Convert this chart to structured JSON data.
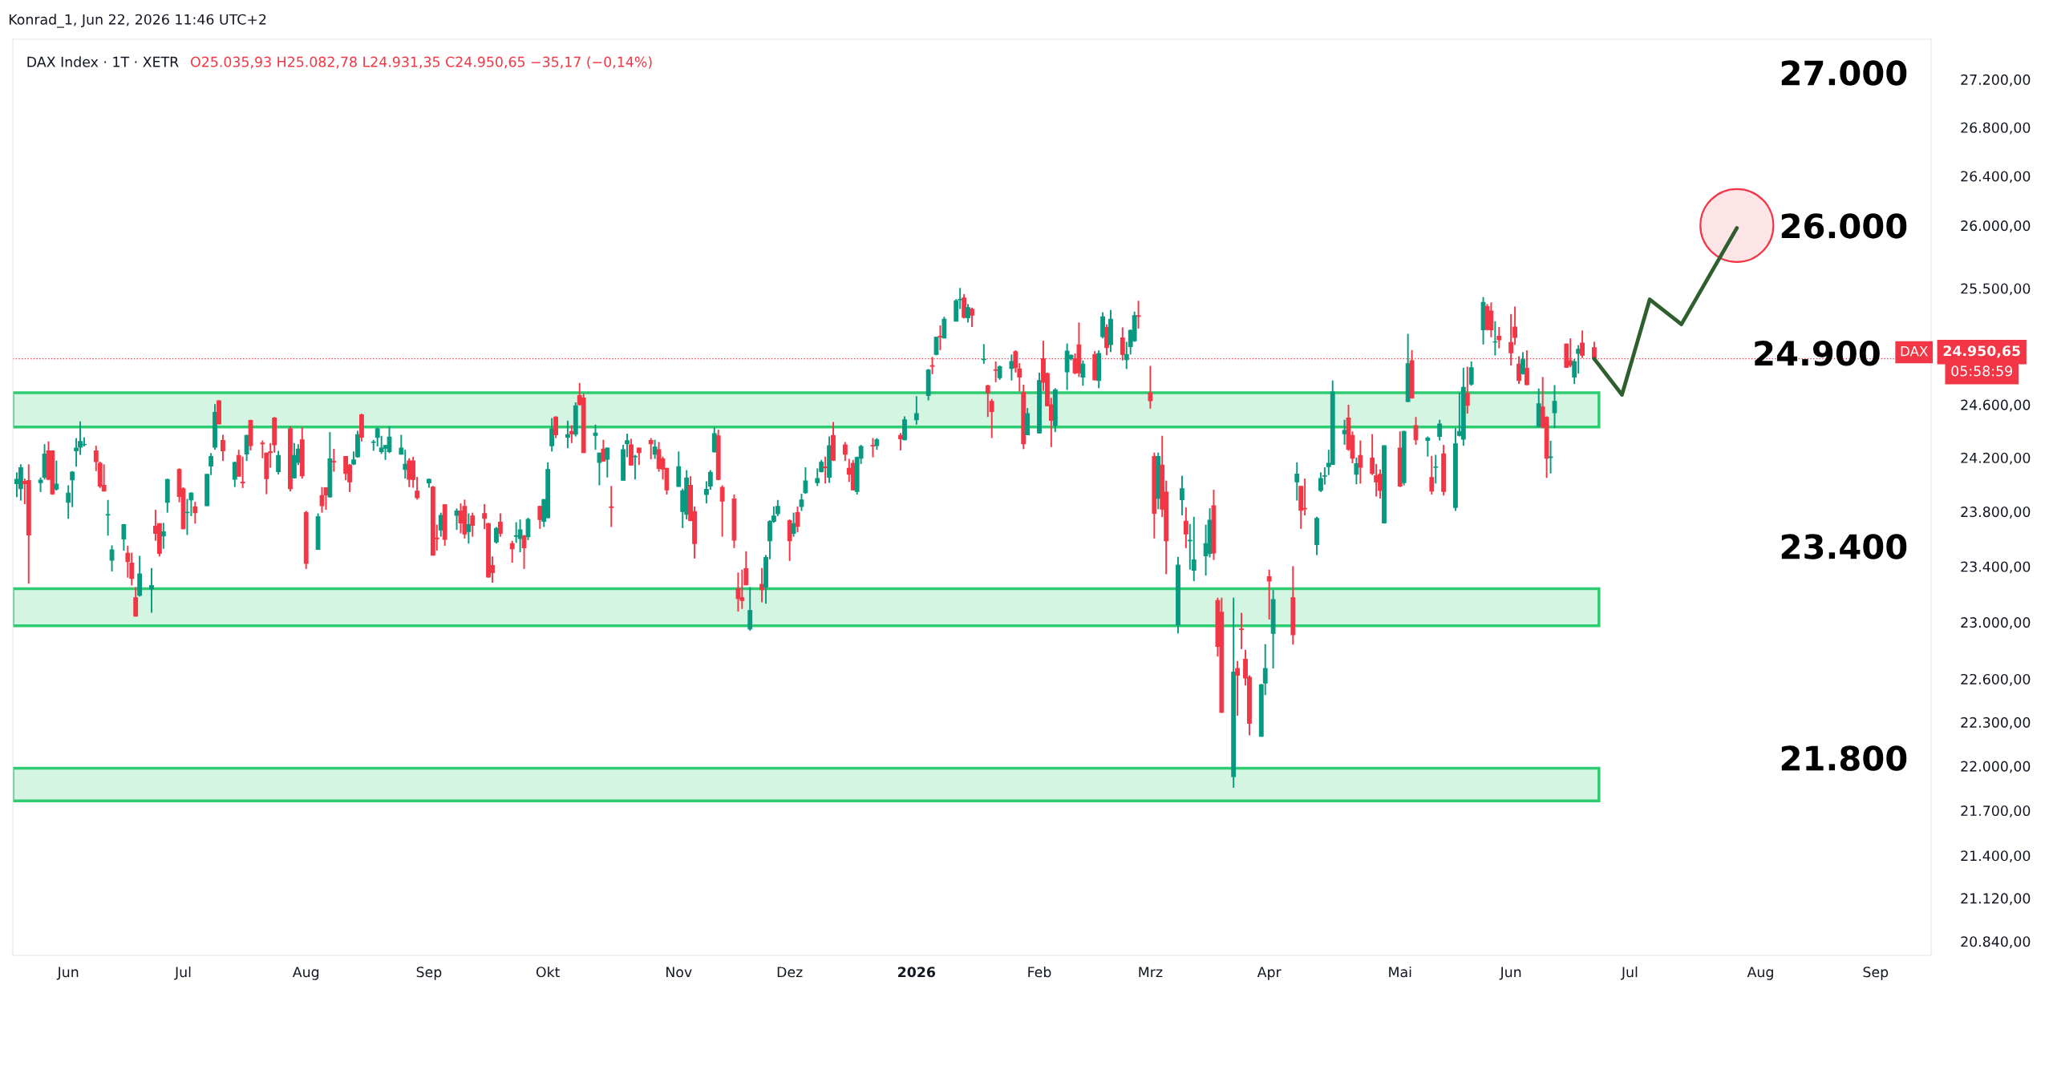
{
  "chart_data": {
    "type": "candlestick",
    "title": "Konrad_1, Jun 22, 2026 11:46 UTC+2",
    "x": [
      "2025-05-20",
      "2025-05-21",
      "2025-05-22",
      "2025-05-23",
      "2025-05-26",
      "2025-05-27",
      "2025-05-28",
      "2025-05-29",
      "2025-05-30",
      "2025-06-02",
      "2025-06-03",
      "2025-06-04",
      "2025-06-05",
      "2025-06-06",
      "2025-06-09",
      "2025-06-10",
      "2025-06-11",
      "2025-06-12",
      "2025-06-13",
      "2025-06-16",
      "2025-06-17",
      "2025-06-18",
      "2025-06-19",
      "2025-06-20",
      "2025-06-23",
      "2025-06-24",
      "2025-06-25",
      "2025-06-26",
      "2025-06-27",
      "2025-06-30",
      "2025-07-01",
      "2025-07-02",
      "2025-07-03",
      "2025-07-04",
      "2025-07-07",
      "2025-07-08",
      "2025-07-09",
      "2025-07-10",
      "2025-07-11",
      "2025-07-14",
      "2025-07-15",
      "2025-07-16",
      "2025-07-17",
      "2025-07-18",
      "2025-07-21",
      "2025-07-22",
      "2025-07-23",
      "2025-07-24",
      "2025-07-25",
      "2025-07-28",
      "2025-07-29",
      "2025-07-30",
      "2025-07-31",
      "2025-08-01",
      "2025-08-04",
      "2025-08-05",
      "2025-08-06",
      "2025-08-07",
      "2025-08-08",
      "2025-08-11",
      "2025-08-12",
      "2025-08-13",
      "2025-08-14",
      "2025-08-15",
      "2025-08-18",
      "2025-08-19",
      "2025-08-20",
      "2025-08-21",
      "2025-08-22",
      "2025-08-25",
      "2025-08-26",
      "2025-08-27",
      "2025-08-28",
      "2025-08-29",
      "2025-09-01",
      "2025-09-02",
      "2025-09-03",
      "2025-09-04",
      "2025-09-05",
      "2025-09-08",
      "2025-09-09",
      "2025-09-10",
      "2025-09-11",
      "2025-09-12",
      "2025-09-15",
      "2025-09-16",
      "2025-09-17",
      "2025-09-18",
      "2025-09-19",
      "2025-09-22",
      "2025-09-23",
      "2025-09-24",
      "2025-09-25",
      "2025-09-26",
      "2025-09-29",
      "2025-09-30",
      "2025-10-01",
      "2025-10-02",
      "2025-10-03",
      "2025-10-06",
      "2025-10-07",
      "2025-10-08",
      "2025-10-09",
      "2025-10-10",
      "2025-10-13",
      "2025-10-14",
      "2025-10-15",
      "2025-10-16",
      "2025-10-17",
      "2025-10-20",
      "2025-10-21",
      "2025-10-22",
      "2025-10-23",
      "2025-10-24",
      "2025-10-27",
      "2025-10-28",
      "2025-10-29",
      "2025-10-30",
      "2025-10-31",
      "2025-11-03",
      "2025-11-04",
      "2025-11-05",
      "2025-11-06",
      "2025-11-07",
      "2025-11-10",
      "2025-11-11",
      "2025-11-12",
      "2025-11-13",
      "2025-11-14",
      "2025-11-17",
      "2025-11-18",
      "2025-11-19",
      "2025-11-20",
      "2025-11-21",
      "2025-11-24",
      "2025-11-25",
      "2025-11-26",
      "2025-11-27",
      "2025-11-28",
      "2025-12-01",
      "2025-12-02",
      "2025-12-03",
      "2025-12-04",
      "2025-12-05",
      "2025-12-08",
      "2025-12-09",
      "2025-12-10",
      "2025-12-11",
      "2025-12-12",
      "2025-12-15",
      "2025-12-16",
      "2025-12-17",
      "2025-12-18",
      "2025-12-19",
      "2025-12-22",
      "2025-12-23",
      "2025-12-29",
      "2025-12-30",
      "2026-01-02",
      "2026-01-05",
      "2026-01-06",
      "2026-01-07",
      "2026-01-08",
      "2026-01-09",
      "2026-01-12",
      "2026-01-13",
      "2026-01-14",
      "2026-01-15",
      "2026-01-16",
      "2026-01-19",
      "2026-01-20",
      "2026-01-21",
      "2026-01-22",
      "2026-01-23",
      "2026-01-26",
      "2026-01-27",
      "2026-01-28",
      "2026-01-29",
      "2026-01-30",
      "2026-02-02",
      "2026-02-03",
      "2026-02-04",
      "2026-02-05",
      "2026-02-06",
      "2026-02-09",
      "2026-02-10",
      "2026-02-11",
      "2026-02-12",
      "2026-02-13",
      "2026-02-16",
      "2026-02-17",
      "2026-02-18",
      "2026-02-19",
      "2026-02-20",
      "2026-02-23",
      "2026-02-24",
      "2026-02-25",
      "2026-02-26",
      "2026-02-27",
      "2026-03-02",
      "2026-03-03",
      "2026-03-04",
      "2026-03-05",
      "2026-03-06",
      "2026-03-09",
      "2026-03-10",
      "2026-03-11",
      "2026-03-12",
      "2026-03-13",
      "2026-03-16",
      "2026-03-17",
      "2026-03-18",
      "2026-03-19",
      "2026-03-20",
      "2026-03-23",
      "2026-03-24",
      "2026-03-25",
      "2026-03-26",
      "2026-03-27",
      "2026-03-30",
      "2026-03-31",
      "2026-04-01",
      "2026-04-02",
      "2026-04-07",
      "2026-04-08",
      "2026-04-09",
      "2026-04-10",
      "2026-04-13",
      "2026-04-14",
      "2026-04-15",
      "2026-04-16",
      "2026-04-17",
      "2026-04-20",
      "2026-04-21",
      "2026-04-22",
      "2026-04-23",
      "2026-04-24",
      "2026-04-27",
      "2026-04-28",
      "2026-04-29",
      "2026-04-30",
      "2026-05-04",
      "2026-05-05",
      "2026-05-06",
      "2026-05-07",
      "2026-05-08",
      "2026-05-11",
      "2026-05-12",
      "2026-05-13",
      "2026-05-14",
      "2026-05-15",
      "2026-05-18",
      "2026-05-19",
      "2026-05-20",
      "2026-05-21",
      "2026-05-22",
      "2026-05-25",
      "2026-05-26",
      "2026-05-27",
      "2026-05-28",
      "2026-05-29",
      "2026-06-01",
      "2026-06-02",
      "2026-06-03",
      "2026-06-04",
      "2026-06-05",
      "2026-06-08",
      "2026-06-09",
      "2026-06-10",
      "2026-06-11",
      "2026-06-12",
      "2026-06-15",
      "2026-06-16",
      "2026-06-17",
      "2026-06-18",
      "2026-06-19",
      "2026-06-22"
    ],
    "ohlc": [
      [
        24007,
        24090,
        23906,
        24039
      ],
      [
        23969,
        24150,
        23881,
        24125
      ],
      [
        24024,
        24044,
        23855,
        24007
      ],
      [
        24029,
        24150,
        23276,
        23629
      ],
      [
        24014,
        24052,
        23944,
        24032
      ],
      [
        24054,
        24301,
        24037,
        24226
      ],
      [
        24251,
        24322,
        24032,
        24039
      ],
      [
        24251,
        24255,
        23923,
        23931
      ],
      [
        23966,
        24178,
        23956,
        24002
      ],
      [
        23868,
        23994,
        23747,
        23936
      ],
      [
        24034,
        24100,
        23833,
        24092
      ],
      [
        24251,
        24347,
        24133,
        24271
      ],
      [
        24279,
        24473,
        24221,
        24322
      ],
      [
        24297,
        24352,
        24284,
        24300
      ],
      [
        24251,
        24289,
        24100,
        24170
      ],
      [
        24158,
        24170,
        23974,
        23989
      ],
      [
        23994,
        24150,
        23949,
        23951
      ],
      [
        23775,
        23886,
        23624,
        23778
      ],
      [
        23445,
        23553,
        23364,
        23520
      ],
      [
        23599,
        23709,
        23515,
        23704
      ],
      [
        23495,
        23550,
        23319,
        23435
      ],
      [
        23424,
        23500,
        23263,
        23314
      ],
      [
        23175,
        23251,
        23040,
        23043
      ],
      [
        23193,
        23477,
        23183,
        23346
      ],
      [
        23238,
        23389,
        23067,
        23263
      ],
      [
        23692,
        23813,
        23586,
        23641
      ],
      [
        23712,
        23715,
        23472,
        23495
      ],
      [
        23621,
        23717,
        23528,
        23651
      ],
      [
        23868,
        24044,
        23792,
        24037
      ],
      [
        24112,
        24120,
        23868,
        23911
      ],
      [
        23969,
        23979,
        23670,
        23674
      ],
      [
        23792,
        23893,
        23629,
        23795
      ],
      [
        23886,
        23944,
        23767,
        23936
      ],
      [
        23835,
        23873,
        23712,
        23792
      ],
      [
        23843,
        24077,
        23840,
        24075
      ],
      [
        24138,
        24234,
        24070,
        24208
      ],
      [
        24279,
        24604,
        24259,
        24541
      ],
      [
        24629,
        24632,
        24450,
        24453
      ],
      [
        24329,
        24372,
        24175,
        24251
      ],
      [
        24039,
        24170,
        23981,
        24163
      ],
      [
        24216,
        24259,
        24060,
        24062
      ],
      [
        24017,
        24208,
        23974,
        24012
      ],
      [
        24228,
        24372,
        24175,
        24367
      ],
      [
        24480,
        24485,
        24254,
        24291
      ],
      [
        24309,
        24329,
        24196,
        24304
      ],
      [
        24234,
        24238,
        23928,
        24044
      ],
      [
        24244,
        24309,
        24125,
        24238
      ],
      [
        24498,
        24506,
        24238,
        24296
      ],
      [
        24095,
        24251,
        24075,
        24216
      ],
      [
        24417,
        24435,
        23949,
        23969
      ],
      [
        24049,
        24309,
        24045,
        24216
      ],
      [
        24165,
        24301,
        24145,
        24264
      ],
      [
        24334,
        24427,
        24044,
        24065
      ],
      [
        23792,
        23805,
        23382,
        23422
      ],
      [
        23523,
        23787,
        23520,
        23762
      ],
      [
        23918,
        23981,
        23792,
        23843
      ],
      [
        23976,
        23980,
        23813,
        23923
      ],
      [
        23908,
        24392,
        23903,
        24191
      ],
      [
        24172,
        24266,
        24095,
        24168
      ],
      [
        24208,
        24210,
        24032,
        24082
      ],
      [
        24145,
        24153,
        23944,
        24019
      ],
      [
        24153,
        24246,
        24145,
        24183
      ],
      [
        24206,
        24402,
        24201,
        24372
      ],
      [
        24523,
        24531,
        24322,
        24354
      ],
      [
        24314,
        24334,
        24251,
        24317
      ],
      [
        24352,
        24427,
        24284,
        24417
      ],
      [
        24246,
        24364,
        24228,
        24271
      ],
      [
        24271,
        24295,
        24183,
        24291
      ],
      [
        24246,
        24435,
        24234,
        24354
      ],
      [
        24226,
        24372,
        24223,
        24271
      ],
      [
        24112,
        24259,
        24044,
        24150
      ],
      [
        24175,
        24196,
        23981,
        24039
      ],
      [
        24175,
        24206,
        23976,
        24037
      ],
      [
        23951,
        24057,
        23888,
        23903
      ],
      [
        24012,
        24044,
        23976,
        24039
      ],
      [
        23981,
        23989,
        23480,
        23482
      ],
      [
        23606,
        23704,
        23515,
        23601
      ],
      [
        23666,
        23792,
        23616,
        23772
      ],
      [
        23850,
        23855,
        23550,
        23596
      ],
      [
        23772,
        23823,
        23666,
        23805
      ],
      [
        23805,
        23860,
        23641,
        23717
      ],
      [
        23838,
        23888,
        23603,
        23636
      ],
      [
        23654,
        23787,
        23566,
        23704
      ],
      [
        23767,
        23792,
        23616,
        23699
      ],
      [
        23785,
        23855,
        23671,
        23750
      ],
      [
        23712,
        23717,
        23319,
        23324
      ],
      [
        23407,
        23472,
        23283,
        23356
      ],
      [
        23578,
        23687,
        23566,
        23676
      ],
      [
        23722,
        23787,
        23616,
        23641
      ],
      [
        23566,
        23586,
        23427,
        23528
      ],
      [
        23619,
        23722,
        23571,
        23623
      ],
      [
        23603,
        23742,
        23503,
        23666
      ],
      [
        23621,
        23629,
        23382,
        23535
      ],
      [
        23616,
        23755,
        23591,
        23742
      ],
      [
        23838,
        23842,
        23674,
        23742
      ],
      [
        23729,
        23892,
        23687,
        23888
      ],
      [
        23755,
        24165,
        23752,
        24112
      ],
      [
        24289,
        24498,
        24246,
        24417
      ],
      [
        24506,
        24511,
        24347,
        24372
      ],
      [
        24354,
        24478,
        24271,
        24372
      ],
      [
        24397,
        24443,
        24309,
        24380
      ],
      [
        24377,
        24617,
        24359,
        24591
      ],
      [
        24669,
        24765,
        24594,
        24599
      ],
      [
        24651,
        24683,
        24235,
        24238
      ],
      [
        24367,
        24448,
        24259,
        24385
      ],
      [
        24165,
        24238,
        23994,
        24234
      ],
      [
        24264,
        24334,
        24172,
        24175
      ],
      [
        24188,
        24276,
        24052,
        24271
      ],
      [
        23835,
        23989,
        23687,
        23830
      ],
      [
        24032,
        24296,
        24029,
        24259
      ],
      [
        24304,
        24380,
        24203,
        24327
      ],
      [
        24296,
        24342,
        24142,
        24145
      ],
      [
        24206,
        24221,
        24037,
        24210
      ],
      [
        24271,
        24275,
        24145,
        24238
      ],
      [
        24329,
        24347,
        24188,
        24304
      ],
      [
        24226,
        24334,
        24191,
        24279
      ],
      [
        24259,
        24317,
        24095,
        24120
      ],
      [
        24191,
        24208,
        24037,
        24115
      ],
      [
        24120,
        24124,
        23926,
        23961
      ],
      [
        23986,
        24246,
        23984,
        24133
      ],
      [
        23800,
        23969,
        23679,
        23954
      ],
      [
        23780,
        24107,
        23742,
        24049
      ],
      [
        23994,
        24062,
        23729,
        23734
      ],
      [
        23800,
        23838,
        23457,
        23566
      ],
      [
        23926,
        24024,
        23860,
        23964
      ],
      [
        23989,
        24107,
        23961,
        24090
      ],
      [
        24244,
        24430,
        24238,
        24380
      ],
      [
        24364,
        24410,
        24032,
        24037
      ],
      [
        23979,
        23994,
        23616,
        23878
      ],
      [
        23893,
        23926,
        23533,
        23591
      ],
      [
        23238,
        23356,
        23076,
        23170
      ],
      [
        23175,
        23377,
        23095,
        23155
      ],
      [
        23384,
        23510,
        23265,
        23268
      ],
      [
        22952,
        23251,
        22940,
        23083
      ],
      [
        23271,
        23389,
        23142,
        23233
      ],
      [
        23251,
        23482,
        23132,
        23465
      ],
      [
        23586,
        23737,
        23452,
        23727
      ],
      [
        23729,
        23838,
        23717,
        23767
      ],
      [
        23785,
        23886,
        23767,
        23838
      ],
      [
        23734,
        23742,
        23440,
        23586
      ],
      [
        23641,
        23792,
        23616,
        23712
      ],
      [
        23792,
        23838,
        23649,
        23692
      ],
      [
        23838,
        23931,
        23805,
        23886
      ],
      [
        23939,
        24128,
        23931,
        24027
      ],
      [
        24014,
        24120,
        23989,
        24044
      ],
      [
        24095,
        24183,
        24090,
        24165
      ],
      [
        24130,
        24208,
        24007,
        24125
      ],
      [
        24054,
        24359,
        24012,
        24289
      ],
      [
        24367,
        24468,
        24175,
        24181
      ],
      [
        24296,
        24317,
        24175,
        24226
      ],
      [
        24120,
        24191,
        24019,
        24077
      ],
      [
        24158,
        24183,
        23956,
        23961
      ],
      [
        23949,
        24208,
        23926,
        24201
      ],
      [
        24196,
        24296,
        24153,
        24284
      ],
      [
        24291,
        24347,
        24203,
        24287
      ],
      [
        24291,
        24347,
        24259,
        24334
      ],
      [
        24367,
        24385,
        24254,
        24342
      ],
      [
        24334,
        24511,
        24330,
        24485
      ],
      [
        24485,
        24664,
        24448,
        24531
      ],
      [
        24669,
        24872,
        24632,
        24864
      ],
      [
        24898,
        24965,
        24832,
        24893
      ],
      [
        24984,
        25122,
        24978,
        25117
      ],
      [
        25125,
        25210,
        25018,
        25120
      ],
      [
        25112,
        25277,
        25109,
        25258
      ],
      [
        25242,
        25415,
        25240,
        25402
      ],
      [
        25410,
        25503,
        25338,
        25413
      ],
      [
        25424,
        25455,
        25264,
        25272
      ],
      [
        25269,
        25376,
        25232,
        25349
      ],
      [
        25336,
        25349,
        25197,
        25290
      ],
      [
        24944,
        25064,
        24912,
        24948
      ],
      [
        24744,
        24752,
        24506,
        24691
      ],
      [
        24624,
        24643,
        24347,
        24548
      ],
      [
        24866,
        24930,
        24771,
        24862
      ],
      [
        24805,
        24899,
        24789,
        24890
      ],
      [
        24877,
        24984,
        24784,
        24930
      ],
      [
        25005,
        25016,
        24845,
        24882
      ],
      [
        24872,
        24917,
        24699,
        24811
      ],
      [
        24691,
        24752,
        24264,
        24304
      ],
      [
        24372,
        24574,
        24370,
        24531
      ],
      [
        24385,
        24843,
        24382,
        24784
      ],
      [
        24952,
        25090,
        24704,
        24771
      ],
      [
        24837,
        24845,
        24588,
        24591
      ],
      [
        24599,
        24651,
        24279,
        24480
      ],
      [
        24443,
        24725,
        24392,
        24712
      ],
      [
        24851,
        25069,
        24712,
        25010
      ],
      [
        24952,
        24984,
        24938,
        24978
      ],
      [
        24952,
        24992,
        24832,
        24843
      ],
      [
        25058,
        25232,
        24811,
        24843
      ],
      [
        24811,
        24938,
        24744,
        24909
      ],
      [
        24984,
        25010,
        24784,
        24789
      ],
      [
        24784,
        25016,
        24725,
        24992
      ],
      [
        25122,
        25312,
        25109,
        25277
      ],
      [
        25194,
        25218,
        24978,
        25037
      ],
      [
        25061,
        25330,
        25002,
        25258
      ],
      [
        25112,
        25194,
        24938,
        24984
      ],
      [
        24944,
        25082,
        24872,
        24984
      ],
      [
        25045,
        25178,
        24984,
        25170
      ],
      [
        25090,
        25317,
        25082,
        25285
      ],
      [
        25285,
        25402,
        25184,
        25280
      ],
      [
        24688,
        24896,
        24569,
        24629
      ],
      [
        24208,
        24238,
        23603,
        23787
      ],
      [
        23898,
        24238,
        23818,
        24208
      ],
      [
        24145,
        24364,
        23760,
        23818
      ],
      [
        23944,
        24029,
        23344,
        23586
      ],
      [
        22981,
        23470,
        22921,
        23409
      ],
      [
        23888,
        24065,
        23772,
        23969
      ],
      [
        23729,
        23830,
        23533,
        23636
      ],
      [
        23586,
        23709,
        23377,
        23590
      ],
      [
        23372,
        23762,
        23294,
        23447
      ],
      [
        23477,
        23704,
        23334,
        23566
      ],
      [
        23495,
        23825,
        23465,
        23737
      ],
      [
        23843,
        23961,
        23447,
        23498
      ],
      [
        23155,
        23175,
        22757,
        22829
      ],
      [
        23071,
        23175,
        22364,
        22369
      ],
      [
        21929,
        23175,
        21853,
        22648
      ],
      [
        22674,
        22726,
        22345,
        22626
      ],
      [
        22952,
        23067,
        22810,
        22948
      ],
      [
        22738,
        22805,
        22555,
        22607
      ],
      [
        22612,
        22626,
        22210,
        22293
      ],
      [
        22203,
        22565,
        22200,
        22560
      ],
      [
        22572,
        22845,
        22488,
        22674
      ],
      [
        23326,
        23377,
        23019,
        23294
      ],
      [
        22921,
        23230,
        22674,
        23162
      ],
      [
        23175,
        23402,
        22841,
        22912
      ],
      [
        24019,
        24165,
        23881,
        24077
      ],
      [
        23986,
        23989,
        23674,
        23810
      ],
      [
        23823,
        24044,
        23772,
        23820
      ],
      [
        23558,
        23762,
        23482,
        23750
      ],
      [
        23956,
        24090,
        23944,
        24044
      ],
      [
        24062,
        24128,
        23999,
        24065
      ],
      [
        24133,
        24259,
        24070,
        24158
      ],
      [
        24150,
        24784,
        24148,
        24696
      ],
      [
        24380,
        24485,
        24296,
        24405
      ],
      [
        24498,
        24599,
        24251,
        24264
      ],
      [
        24367,
        24397,
        24158,
        24196
      ],
      [
        24077,
        24201,
        24002,
        24155
      ],
      [
        24216,
        24329,
        24007,
        24128
      ],
      [
        24196,
        24377,
        24070,
        24082
      ],
      [
        24065,
        24153,
        23911,
        24019
      ],
      [
        24075,
        24112,
        23896,
        23956
      ],
      [
        23717,
        24292,
        23712,
        24289
      ],
      [
        24271,
        24397,
        23981,
        23989
      ],
      [
        24014,
        24402,
        23994,
        24397
      ],
      [
        24624,
        25144,
        24619,
        24912
      ],
      [
        24936,
        25018,
        24645,
        24651
      ],
      [
        24440,
        24506,
        24296,
        24334
      ],
      [
        24329,
        24359,
        24208,
        24347
      ],
      [
        24052,
        24213,
        23926,
        23951
      ],
      [
        24128,
        24221,
        24007,
        24131
      ],
      [
        24359,
        24485,
        24329,
        24453
      ],
      [
        24228,
        24296,
        23918,
        23949
      ],
      [
        23830,
        24422,
        23805,
        24304
      ],
      [
        24367,
        24691,
        24359,
        24397
      ],
      [
        24339,
        24882,
        24289,
        24731
      ],
      [
        24685,
        24890,
        24531,
        24594
      ],
      [
        24757,
        24930,
        24744,
        24882
      ],
      [
        25176,
        25431,
        25061,
        25389
      ],
      [
        25357,
        25376,
        25170,
        25178
      ],
      [
        25322,
        25389,
        25117,
        25176
      ],
      [
        25080,
        25242,
        24976,
        25082
      ],
      [
        25125,
        25197,
        25032,
        25098
      ],
      [
        25077,
        25298,
        24899,
        24997
      ],
      [
        25197,
        25357,
        25058,
        25117
      ],
      [
        24909,
        24970,
        24757,
        24784
      ],
      [
        24837,
        25002,
        24829,
        24944
      ],
      [
        24877,
        25016,
        24749,
        24752
      ],
      [
        24435,
        24723,
        24427,
        24606
      ],
      [
        24581,
        24811,
        24422,
        24430
      ],
      [
        24503,
        24511,
        24049,
        24196
      ],
      [
        24201,
        24327,
        24082,
        24206
      ],
      [
        24539,
        24749,
        24422,
        24624
      ],
      [
        25064,
        25069,
        24880,
        24885
      ],
      [
        24936,
        25109,
        24885,
        24901
      ],
      [
        24811,
        24949,
        24757,
        24928
      ],
      [
        24992,
        25056,
        24837,
        25024
      ],
      [
        25072,
        25170,
        24957,
        24978
      ],
      [
        25035.93,
        25082.78,
        24931.35,
        24950.65
      ]
    ],
    "colors": [
      "#089981",
      "#089981",
      "#f23645",
      "#f23645",
      "#089981",
      "#089981",
      "#f23645",
      "#f23645",
      "#089981",
      "#089981",
      "#089981",
      "#089981",
      "#089981",
      "#089981",
      "#f23645",
      "#f23645",
      "#f23645",
      "#089981",
      "#089981",
      "#089981",
      "#f23645",
      "#f23645",
      "#f23645",
      "#089981",
      "#089981",
      "#f23645",
      "#f23645",
      "#089981",
      "#089981",
      "#f23645",
      "#f23645",
      "#089981",
      "#089981",
      "#f23645",
      "#089981",
      "#089981",
      "#089981",
      "#f23645",
      "#f23645",
      "#089981",
      "#f23645",
      "#f23645",
      "#089981",
      "#f23645",
      "#f23645",
      "#f23645",
      "#f23645",
      "#f23645",
      "#089981",
      "#f23645",
      "#089981",
      "#089981",
      "#f23645",
      "#f23645",
      "#089981",
      "#f23645",
      "#f23645",
      "#089981",
      "#f23645",
      "#f23645",
      "#f23645",
      "#089981",
      "#089981",
      "#f23645",
      "#089981",
      "#089981",
      "#089981",
      "#089981",
      "#089981",
      "#089981",
      "#089981",
      "#f23645",
      "#f23645",
      "#f23645",
      "#089981",
      "#f23645",
      "#f23645",
      "#089981",
      "#f23645",
      "#089981",
      "#f23645",
      "#f23645",
      "#089981",
      "#f23645",
      "#f23645",
      "#f23645",
      "#f23645",
      "#089981",
      "#f23645",
      "#f23645",
      "#089981",
      "#089981",
      "#f23645",
      "#089981",
      "#f23645",
      "#089981",
      "#089981",
      "#089981",
      "#f23645",
      "#089981",
      "#f23645",
      "#089981",
      "#f23645",
      "#f23645",
      "#089981",
      "#089981",
      "#f23645",
      "#089981",
      "#f23645",
      "#089981",
      "#089981",
      "#f23645",
      "#089981",
      "#f23645",
      "#f23645",
      "#089981",
      "#f23645",
      "#f23645",
      "#f23645",
      "#089981",
      "#089981",
      "#089981",
      "#f23645",
      "#f23645",
      "#089981",
      "#089981",
      "#089981",
      "#f23645",
      "#f23645",
      "#f23645",
      "#f23645",
      "#f23645",
      "#f23645",
      "#089981",
      "#f23645",
      "#089981",
      "#089981",
      "#089981",
      "#089981",
      "#f23645",
      "#089981",
      "#f23645",
      "#089981",
      "#089981",
      "#089981",
      "#089981",
      "#f23645",
      "#089981",
      "#f23645",
      "#f23645",
      "#f23645",
      "#f23645",
      "#089981",
      "#089981",
      "#f23645",
      "#089981",
      "#f23645",
      "#089981",
      "#089981",
      "#089981",
      "#f23645",
      "#089981",
      "#f23645",
      "#089981",
      "#089981",
      "#089981",
      "#f23645",
      "#089981",
      "#f23645",
      "#089981",
      "#f23645",
      "#f23645",
      "#f23645",
      "#089981",
      "#089981",
      "#f23645",
      "#f23645",
      "#f23645",
      "#089981",
      "#089981",
      "#f23645",
      "#f23645",
      "#f23645",
      "#089981",
      "#089981",
      "#089981",
      "#f23645",
      "#f23645",
      "#089981",
      "#f23645",
      "#089981",
      "#089981",
      "#f23645",
      "#089981",
      "#f23645",
      "#089981",
      "#089981",
      "#089981",
      "#f23645",
      "#f23645",
      "#f23645",
      "#089981",
      "#f23645",
      "#f23645",
      "#089981",
      "#089981",
      "#f23645",
      "#089981",
      "#089981",
      "#089981",
      "#089981",
      "#f23645",
      "#f23645",
      "#f23645",
      "#089981",
      "#f23645",
      "#f23645",
      "#f23645",
      "#f23645",
      "#089981",
      "#089981",
      "#f23645",
      "#089981",
      "#f23645",
      "#089981",
      "#f23645",
      "#f23645",
      "#089981",
      "#089981",
      "#089981",
      "#089981",
      "#089981",
      "#089981",
      "#f23645",
      "#f23645",
      "#089981",
      "#f23645",
      "#f23645",
      "#f23645",
      "#f23645",
      "#089981",
      "#f23645",
      "#089981",
      "#089981",
      "#f23645",
      "#f23645",
      "#089981",
      "#f23645",
      "#089981",
      "#089981",
      "#f23645",
      "#089981",
      "#089981",
      "#089981",
      "#f23645",
      "#089981",
      "#089981",
      "#f23645",
      "#f23645",
      "#089981",
      "#f23645",
      "#f23645",
      "#f23645",
      "#f23645",
      "#089981",
      "#f23645",
      "#089981",
      "#f23645",
      "#f23645",
      "#089981",
      "#089981",
      "#f23645",
      "#f23645",
      "#089981",
      "#089981",
      "#f23645",
      "#f23645"
    ],
    "series": [
      {
        "type": "line",
        "x": [
          "2026-06-22",
          "2026-06-29",
          "2026-07-06",
          "2026-07-14",
          "2026-07-28"
        ],
        "values": [
          24950.65,
          24675,
          25413,
          25218,
          25980
        ],
        "color": "#2f5f2f"
      },
      {
        "type": "scatter",
        "x": [
          "2026-07-28"
        ],
        "values": [
          26000
        ],
        "color": "#f23645",
        "marker": "circle"
      }
    ],
    "xlim": [
      "2025-05-19",
      "2026-09-15"
    ],
    "xticks": [
      {
        "value": "2025-06-02",
        "label": "Jun"
      },
      {
        "value": "2025-07-01",
        "label": "Jul"
      },
      {
        "value": "2025-08-01",
        "label": "Aug"
      },
      {
        "value": "2025-09-01",
        "label": "Sep"
      },
      {
        "value": "2025-10-01",
        "label": "Okt"
      },
      {
        "value": "2025-11-03",
        "label": "Nov"
      },
      {
        "value": "2025-12-01",
        "label": "Dez"
      },
      {
        "value": "2026-01-02",
        "label": "2026"
      },
      {
        "value": "2026-02-02",
        "label": "Feb"
      },
      {
        "value": "2026-03-02",
        "label": "Mrz"
      },
      {
        "value": "2026-04-01",
        "label": "Apr"
      },
      {
        "value": "2026-05-04",
        "label": "Mai"
      },
      {
        "value": "2026-06-01",
        "label": "Jun"
      },
      {
        "value": "2026-07-01",
        "label": "Jul"
      },
      {
        "value": "2026-08-03",
        "label": "Aug"
      },
      {
        "value": "2026-09-01",
        "label": "Sep"
      }
    ],
    "ylim": [
      20750,
      27540
    ],
    "yticks": [
      {
        "value": 20840,
        "label": "20.840,00"
      },
      {
        "value": 21120,
        "label": "21.120,00"
      },
      {
        "value": 21400,
        "label": "21.400,00"
      },
      {
        "value": 21700,
        "label": "21.700,00"
      },
      {
        "value": 22000,
        "label": "22.000,00"
      },
      {
        "value": 22300,
        "label": "22.300,00"
      },
      {
        "value": 22600,
        "label": "22.600,00"
      },
      {
        "value": 23000,
        "label": "23.000,00"
      },
      {
        "value": 23400,
        "label": "23.400,00"
      },
      {
        "value": 23800,
        "label": "23.800,00"
      },
      {
        "value": 24200,
        "label": "24.200,00"
      },
      {
        "value": 24600,
        "label": "24.600,00"
      },
      {
        "value": 25500,
        "label": "25.500,00"
      },
      {
        "value": 26000,
        "label": "26.000,00"
      },
      {
        "value": 26400,
        "label": "26.400,00"
      },
      {
        "value": 26800,
        "label": "26.800,00"
      },
      {
        "value": 27200,
        "label": "27.200,00"
      }
    ],
    "log": true,
    "ref_lines": [
      {
        "axis": "y",
        "value": 24950.65,
        "label": "24.950,65",
        "color": "#f23645",
        "line_style": "dotted"
      }
    ],
    "bands": [
      {
        "axis": "y",
        "from": 24430,
        "to": 24690,
        "color": "#d5f5e3"
      },
      {
        "axis": "y",
        "from": 22975,
        "to": 23240,
        "color": "#d5f5e3"
      },
      {
        "axis": "y",
        "from": 21765,
        "to": 21985,
        "color": "#d5f5e3"
      }
    ],
    "annotations": [
      "DAX Index · 1T · XETR",
      "O25.035,93 H25.082,78 L24.931,35 C24.950,65 −35,17 (−0,14%)",
      "DAX",
      "05:58:59",
      "27.000",
      "26.000",
      "24.900",
      "23.400",
      "21.800"
    ]
  }
}
